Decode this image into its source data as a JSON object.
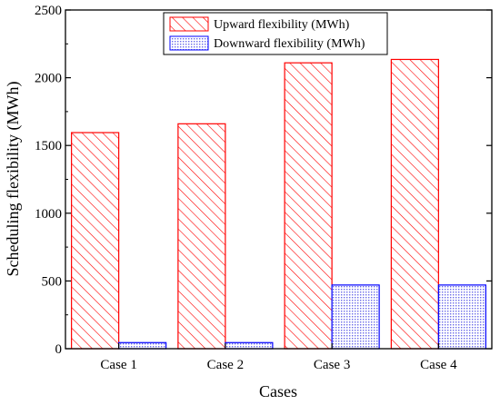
{
  "chart_data": {
    "type": "bar",
    "title": "",
    "xlabel": "Cases",
    "ylabel": "Scheduling flexibility (MWh)",
    "categories": [
      "Case 1",
      "Case 2",
      "Case 3",
      "Case 4"
    ],
    "ylim": [
      0,
      2500
    ],
    "yticks": [
      0,
      500,
      1000,
      1500,
      2000,
      2500
    ],
    "grid": false,
    "legend_position": "top-center",
    "series": [
      {
        "name": "Upward flexibility (MWh)",
        "values": [
          1595,
          1660,
          2110,
          2135
        ],
        "color": "#ff0000",
        "pattern": "diagonal-hatch"
      },
      {
        "name": "Downward flexibility (MWh)",
        "values": [
          45,
          45,
          470,
          470
        ],
        "color": "#0000ff",
        "pattern": "dots"
      }
    ]
  }
}
